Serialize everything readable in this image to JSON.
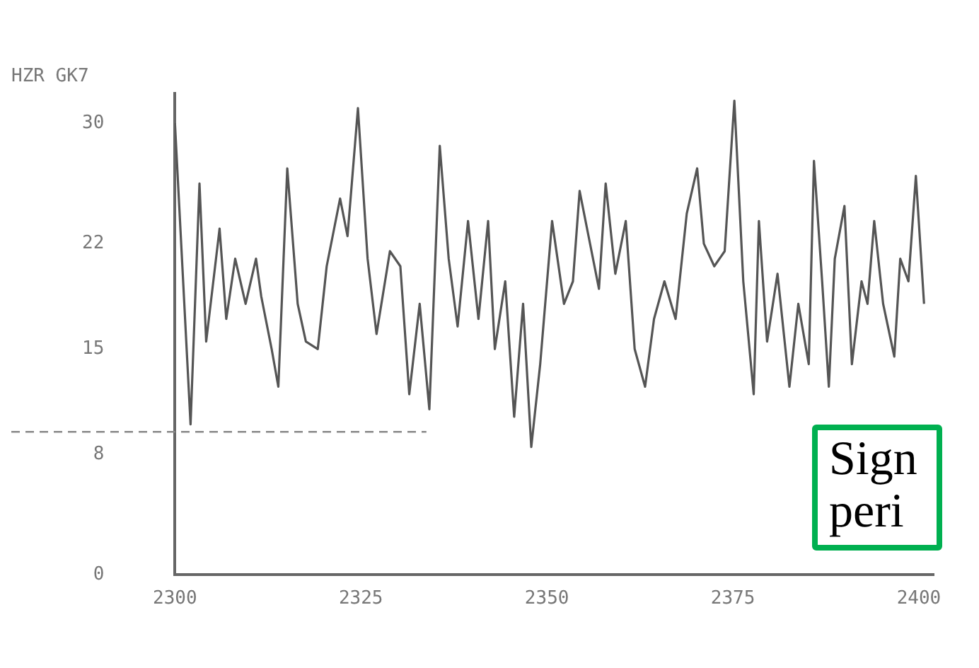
{
  "chart_data": {
    "type": "line",
    "title": "HZR GK7",
    "x": [
      2300,
      2302.1,
      2303.3,
      2304.2,
      2306,
      2306.9,
      2308.1,
      2309.5,
      2310.9,
      2311.6,
      2313,
      2313.9,
      2315.1,
      2316.5,
      2317.6,
      2319.2,
      2320.4,
      2322.2,
      2323.2,
      2324.6,
      2325.9,
      2327.1,
      2328.9,
      2330.3,
      2331.5,
      2332.9,
      2334.2,
      2335.6,
      2336.8,
      2338,
      2339.4,
      2340.8,
      2342.1,
      2343,
      2344.4,
      2345.6,
      2346.8,
      2347.9,
      2349.1,
      2350.7,
      2352.3,
      2353.5,
      2354.4,
      2355.6,
      2357,
      2357.9,
      2359.2,
      2360.6,
      2361.8,
      2363.2,
      2364.4,
      2365.8,
      2367.3,
      2368.8,
      2370.2,
      2371.1,
      2372.5,
      2373.9,
      2375.2,
      2376.4,
      2377.8,
      2378.5,
      2379.6,
      2381,
      2382.6,
      2383.8,
      2385.2,
      2385.9,
      2387,
      2387.9,
      2388.7,
      2390,
      2391,
      2392.3,
      2393.1,
      2394,
      2395.2,
      2396.7,
      2397.5,
      2398.6,
      2399.6,
      2400.7
    ],
    "series": [
      {
        "color": "#555555",
        "values": [
          30,
          10,
          26,
          15.5,
          23,
          17,
          21,
          18,
          21,
          18.5,
          15,
          12.5,
          27,
          18,
          15.5,
          15,
          20.5,
          25,
          22.5,
          31,
          21,
          16,
          21.5,
          20.5,
          12,
          18,
          11,
          28.5,
          21,
          16.5,
          23.5,
          17,
          23.5,
          15,
          19.5,
          10.5,
          18,
          8.5,
          14,
          23.5,
          18,
          19.5,
          25.5,
          22.5,
          19,
          26,
          20,
          23.5,
          15,
          12.5,
          17,
          19.5,
          17,
          24,
          27,
          22,
          20.5,
          21.5,
          31.5,
          19.5,
          12,
          23.5,
          15.5,
          20,
          12.5,
          18,
          14,
          27.5,
          19.5,
          12.5,
          21,
          24.5,
          14,
          19.5,
          18,
          23.5,
          18,
          14.5,
          21,
          19.5,
          26.5,
          18
        ]
      }
    ],
    "xlim": [
      2300,
      2402
    ],
    "xticks": [
      2300,
      2325,
      2350,
      2375,
      2400
    ],
    "ylim": [
      0,
      32
    ],
    "yticks": [
      0,
      8,
      15,
      22,
      30
    ],
    "ref_lines": [
      {
        "axis": "y",
        "value": 9.5,
        "color": "#888888",
        "line_style": "dashed"
      }
    ],
    "annotations": [
      "Sign\nperi"
    ],
    "grid": false,
    "legend": false,
    "marker": "none",
    "line_style": "solid"
  }
}
